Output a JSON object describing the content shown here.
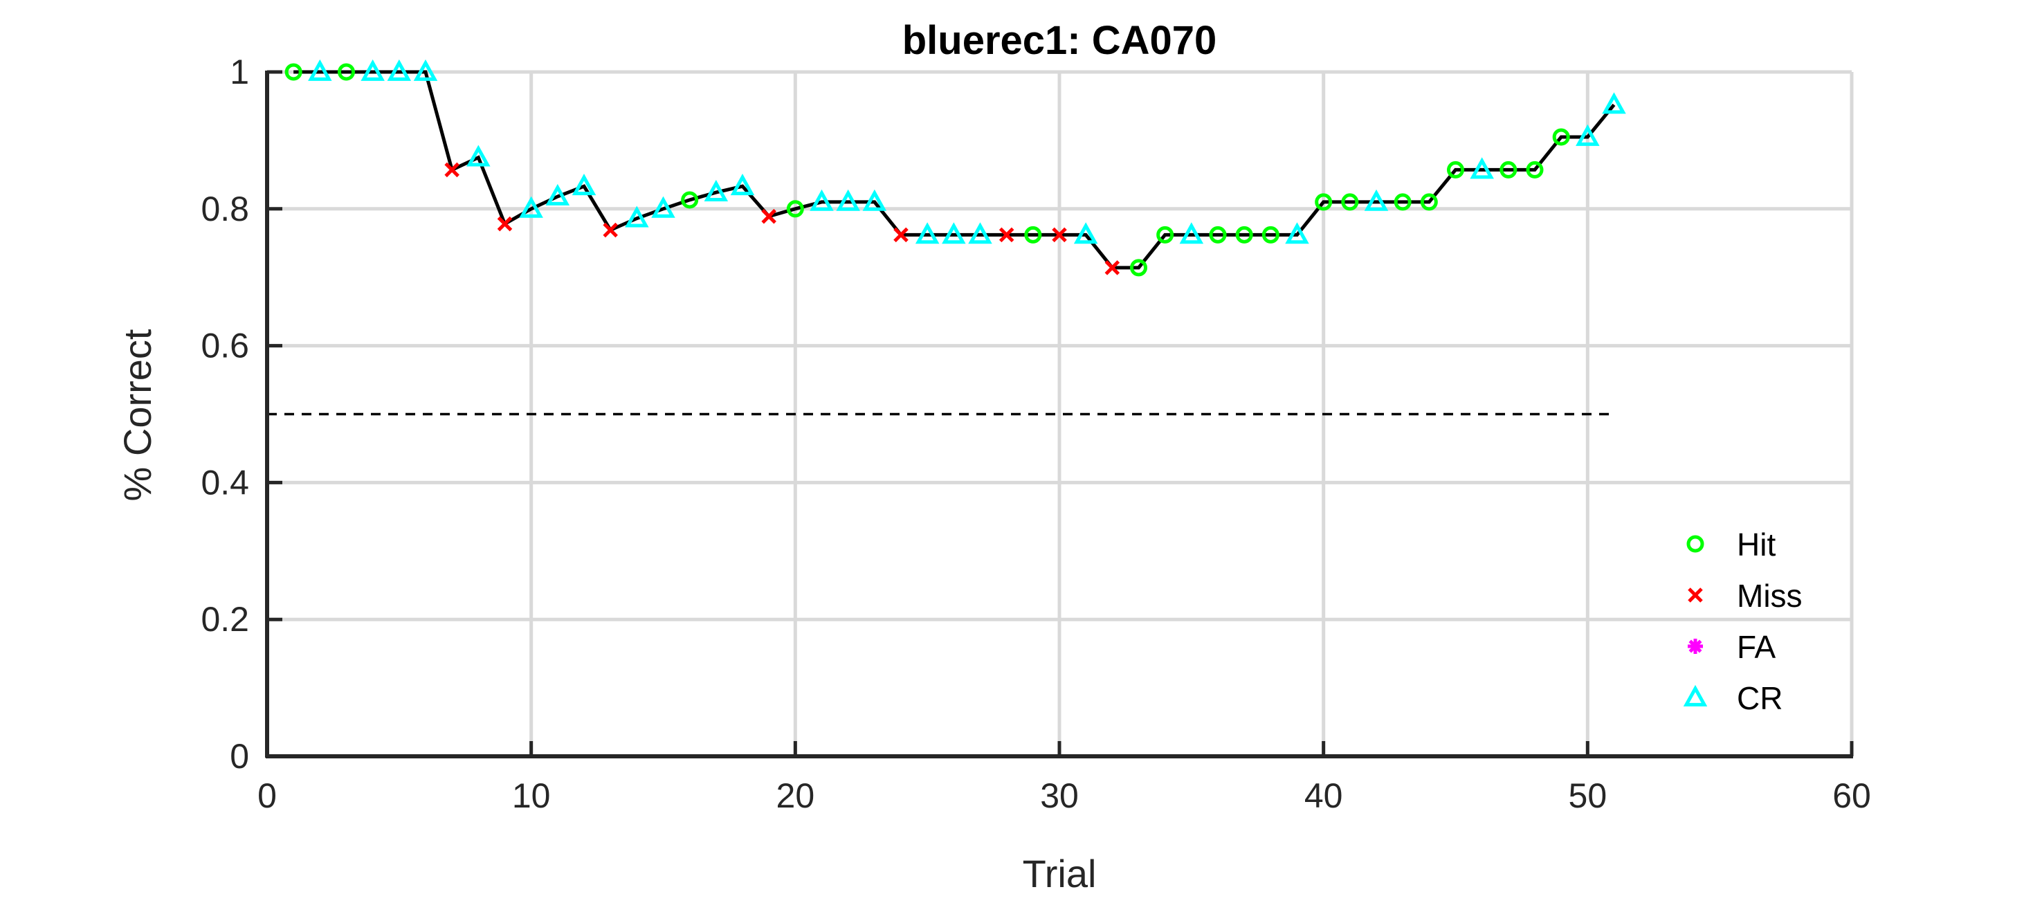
{
  "chart_data": {
    "type": "line",
    "title": "bluerec1: CA070",
    "xlabel": "Trial",
    "ylabel": "% Correct",
    "xlim": [
      0,
      60
    ],
    "ylim": [
      0,
      1
    ],
    "xticks": [
      0,
      10,
      20,
      30,
      40,
      50,
      60
    ],
    "yticks": [
      0,
      0.2,
      0.4,
      0.6,
      0.8,
      1
    ],
    "xtick_labels": [
      "0",
      "10",
      "20",
      "30",
      "40",
      "50",
      "60"
    ],
    "ytick_labels": [
      "0",
      "0.2",
      "0.4",
      "0.6",
      "0.8",
      "1"
    ],
    "grid": true,
    "legend_position": "bottom-right",
    "reference_line": {
      "y": 0.5,
      "x_range": [
        0,
        51
      ],
      "style": "dashed",
      "color": "#000000"
    },
    "line_color": "#000000",
    "x": [
      1,
      2,
      3,
      4,
      5,
      6,
      7,
      8,
      9,
      10,
      11,
      12,
      13,
      14,
      15,
      16,
      17,
      18,
      19,
      20,
      21,
      22,
      23,
      24,
      25,
      26,
      27,
      28,
      29,
      30,
      31,
      32,
      33,
      34,
      35,
      36,
      37,
      38,
      39,
      40,
      41,
      42,
      43,
      44,
      45,
      46,
      47,
      48,
      49,
      50,
      51
    ],
    "y": [
      1,
      1,
      1,
      1,
      1,
      1,
      0.857,
      0.875,
      0.778,
      0.8,
      0.818,
      0.833,
      0.769,
      0.786,
      0.8,
      0.813,
      0.824,
      0.833,
      0.789,
      0.8,
      0.81,
      0.81,
      0.81,
      0.762,
      0.762,
      0.762,
      0.762,
      0.762,
      0.762,
      0.762,
      0.762,
      0.714,
      0.714,
      0.762,
      0.762,
      0.762,
      0.762,
      0.762,
      0.762,
      0.81,
      0.81,
      0.81,
      0.81,
      0.81,
      0.857,
      0.857,
      0.857,
      0.857,
      0.905,
      0.905,
      0.952
    ],
    "outcomes": [
      "Hit",
      "CR",
      "Hit",
      "CR",
      "CR",
      "CR",
      "Miss",
      "CR",
      "Miss",
      "CR",
      "CR",
      "CR",
      "Miss",
      "CR",
      "CR",
      "Hit",
      "CR",
      "CR",
      "Miss",
      "Hit",
      "CR",
      "CR",
      "CR",
      "Miss",
      "CR",
      "CR",
      "CR",
      "Miss",
      "Hit",
      "Miss",
      "CR",
      "Miss",
      "Hit",
      "Hit",
      "CR",
      "Hit",
      "Hit",
      "Hit",
      "CR",
      "Hit",
      "Hit",
      "CR",
      "Hit",
      "Hit",
      "Hit",
      "CR",
      "Hit",
      "Hit",
      "Hit",
      "CR",
      "CR"
    ],
    "series": [
      {
        "name": "Hit",
        "marker": "circle",
        "color": "#00ff00"
      },
      {
        "name": "Miss",
        "marker": "x",
        "color": "#ff0000"
      },
      {
        "name": "FA",
        "marker": "asterisk",
        "color": "#ff00ff"
      },
      {
        "name": "CR",
        "marker": "triangle",
        "color": "#00ffff"
      }
    ]
  }
}
